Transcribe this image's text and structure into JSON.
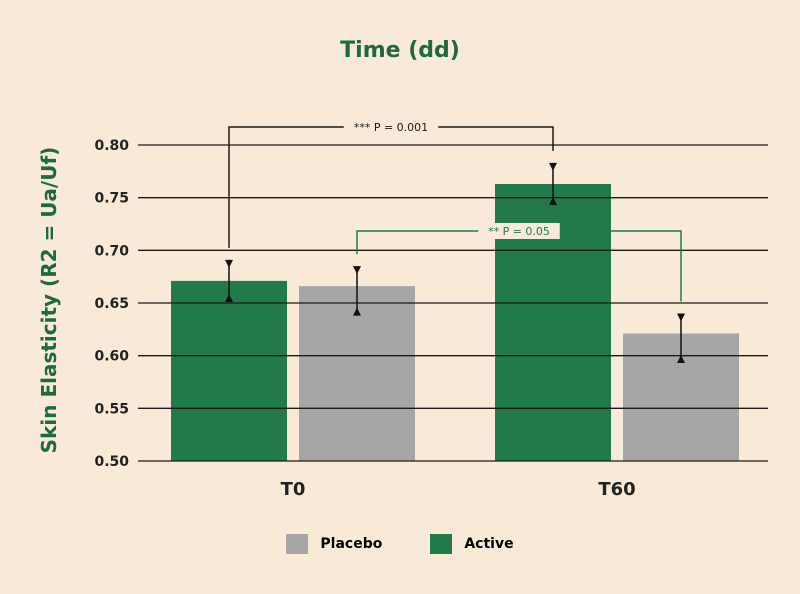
{
  "chart_data": {
    "type": "bar",
    "title": "Time (dd)",
    "xlabel": "",
    "ylabel": "Skin Elasticity (R2 = Ua/Uf)",
    "categories": [
      "T0",
      "T60"
    ],
    "series": [
      {
        "name": "Active",
        "values": [
          0.671,
          0.763
        ],
        "error_low": [
          0.651,
          0.743
        ],
        "error_high": [
          0.691,
          0.783
        ]
      },
      {
        "name": "Placebo",
        "values": [
          0.666,
          0.621
        ],
        "error_low": [
          0.638,
          0.593
        ],
        "error_high": [
          0.685,
          0.64
        ]
      }
    ],
    "ylim": [
      0.5,
      0.8
    ],
    "yticks": [
      "0.50",
      "0.55",
      "0.60",
      "0.65",
      "0.70",
      "0.75",
      "0.80"
    ],
    "grid": true,
    "legend_position": "bottom",
    "legend": [
      {
        "name": "Placebo",
        "color": "#a6a6a6"
      },
      {
        "name": "Active",
        "color": "#217a4a"
      }
    ],
    "annotations": [
      {
        "label": "*** P = 0.001",
        "from": {
          "category": "T0",
          "series": "Active"
        },
        "to": {
          "category": "T60",
          "series": "Active"
        },
        "color": "#1a1a1a"
      },
      {
        "label": "** P = 0.05",
        "from": {
          "category": "T0",
          "series": "Placebo"
        },
        "to": {
          "category": "T60",
          "series": "Placebo"
        },
        "color": "#217a4a"
      }
    ]
  },
  "colors": {
    "background": "#f8ead6",
    "active": "#217a4a",
    "placebo": "#a6a6a6",
    "text_green": "#1e6b3a",
    "grid": "#1a1a1a"
  }
}
